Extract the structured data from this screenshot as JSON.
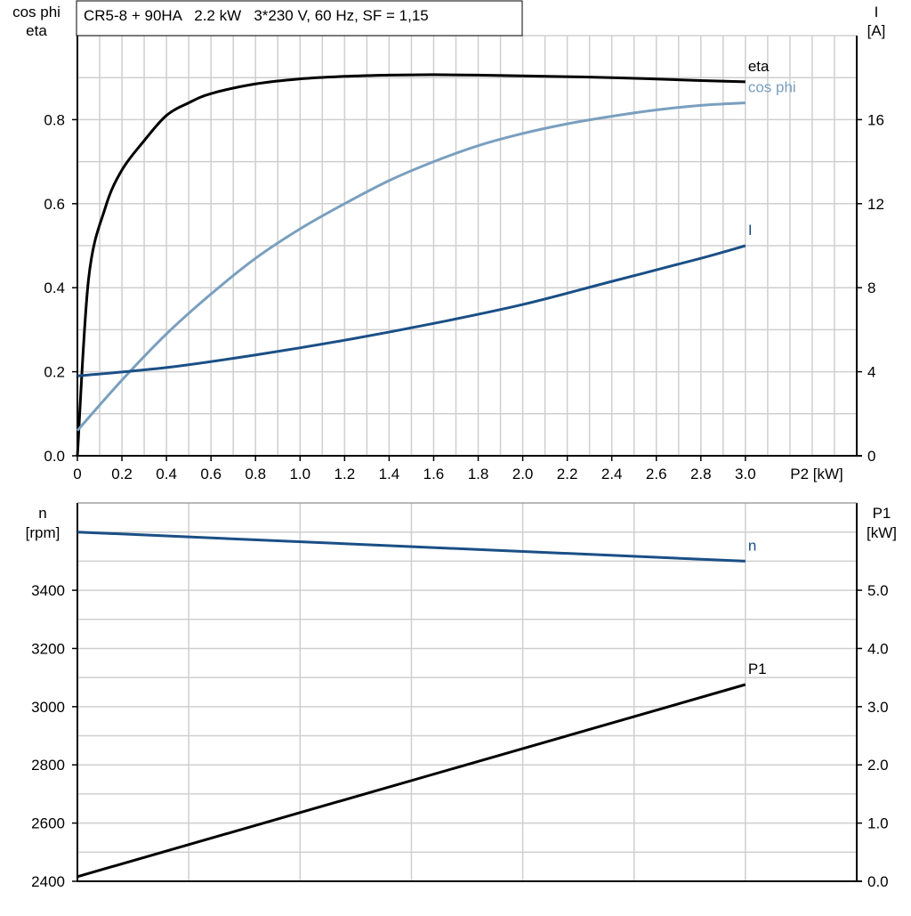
{
  "chart_data": [
    {
      "type": "line",
      "title": "CR5-8 + 90HA   2.2 kW   3*230 V, 60 Hz, SF = 1,15",
      "xlabel": "P2 [kW]",
      "ylabel_left": [
        "cos phi",
        "eta"
      ],
      "ylabel_right": [
        "I",
        "[A]"
      ],
      "xlim": [
        0,
        3.5
      ],
      "ylim_left": [
        0,
        1.0
      ],
      "ylim_right": [
        0,
        20
      ],
      "x_ticks": [
        "0",
        "0.2",
        "0.4",
        "0.6",
        "0.8",
        "1.0",
        "1.2",
        "1.4",
        "1.6",
        "1.8",
        "2.0",
        "2.2",
        "2.4",
        "2.6",
        "2.8",
        "3.0"
      ],
      "y_ticks_left": [
        "0.0",
        "0.2",
        "0.4",
        "0.6",
        "0.8"
      ],
      "y_ticks_right": [
        "0",
        "4",
        "8",
        "12",
        "16"
      ],
      "grid": true,
      "series": [
        {
          "name": "eta",
          "axis": "left",
          "color": "#000000",
          "x": [
            0,
            0.05,
            0.125,
            0.2,
            0.3,
            0.4,
            0.5,
            0.6,
            0.8,
            1.0,
            1.2,
            1.4,
            1.6,
            1.8,
            2.0,
            2.4,
            2.8,
            3.0
          ],
          "y": [
            0,
            0.42,
            0.59,
            0.68,
            0.75,
            0.81,
            0.84,
            0.862,
            0.885,
            0.897,
            0.903,
            0.906,
            0.907,
            0.906,
            0.904,
            0.9,
            0.893,
            0.89
          ]
        },
        {
          "name": "cos phi",
          "axis": "left",
          "color": "#7a9fbf",
          "x": [
            0,
            0.2,
            0.4,
            0.6,
            0.8,
            1.0,
            1.2,
            1.4,
            1.6,
            1.8,
            2.0,
            2.2,
            2.4,
            2.6,
            2.8,
            3.0
          ],
          "y": [
            0.06,
            0.18,
            0.29,
            0.385,
            0.47,
            0.54,
            0.6,
            0.655,
            0.7,
            0.738,
            0.767,
            0.79,
            0.808,
            0.823,
            0.834,
            0.84
          ]
        },
        {
          "name": "I",
          "axis": "right",
          "color": "#1a4f86",
          "x": [
            0,
            0.4,
            0.8,
            1.2,
            1.6,
            2.0,
            2.4,
            2.8,
            3.0
          ],
          "y": [
            3.8,
            4.2,
            4.8,
            5.5,
            6.3,
            7.2,
            8.3,
            9.4,
            10.0
          ]
        }
      ]
    },
    {
      "type": "line",
      "ylabel_left": [
        "n",
        "[rpm]"
      ],
      "ylabel_right": [
        "P1",
        "[kW]"
      ],
      "xlim": [
        0,
        3.5
      ],
      "ylim_left": [
        2400,
        3700
      ],
      "ylim_right": [
        0,
        6.5
      ],
      "y_ticks_left": [
        "2400",
        "2600",
        "2800",
        "3000",
        "3200",
        "3400"
      ],
      "y_ticks_right": [
        "0.0",
        "1.0",
        "2.0",
        "3.0",
        "4.0",
        "5.0"
      ],
      "grid": true,
      "series": [
        {
          "name": "n",
          "axis": "left",
          "color": "#1a4f86",
          "x": [
            0,
            3.0
          ],
          "y": [
            3600,
            3500
          ]
        },
        {
          "name": "P1",
          "axis": "right",
          "color": "#000000",
          "x": [
            0,
            3.0
          ],
          "y": [
            0.08,
            3.38
          ]
        }
      ]
    }
  ]
}
